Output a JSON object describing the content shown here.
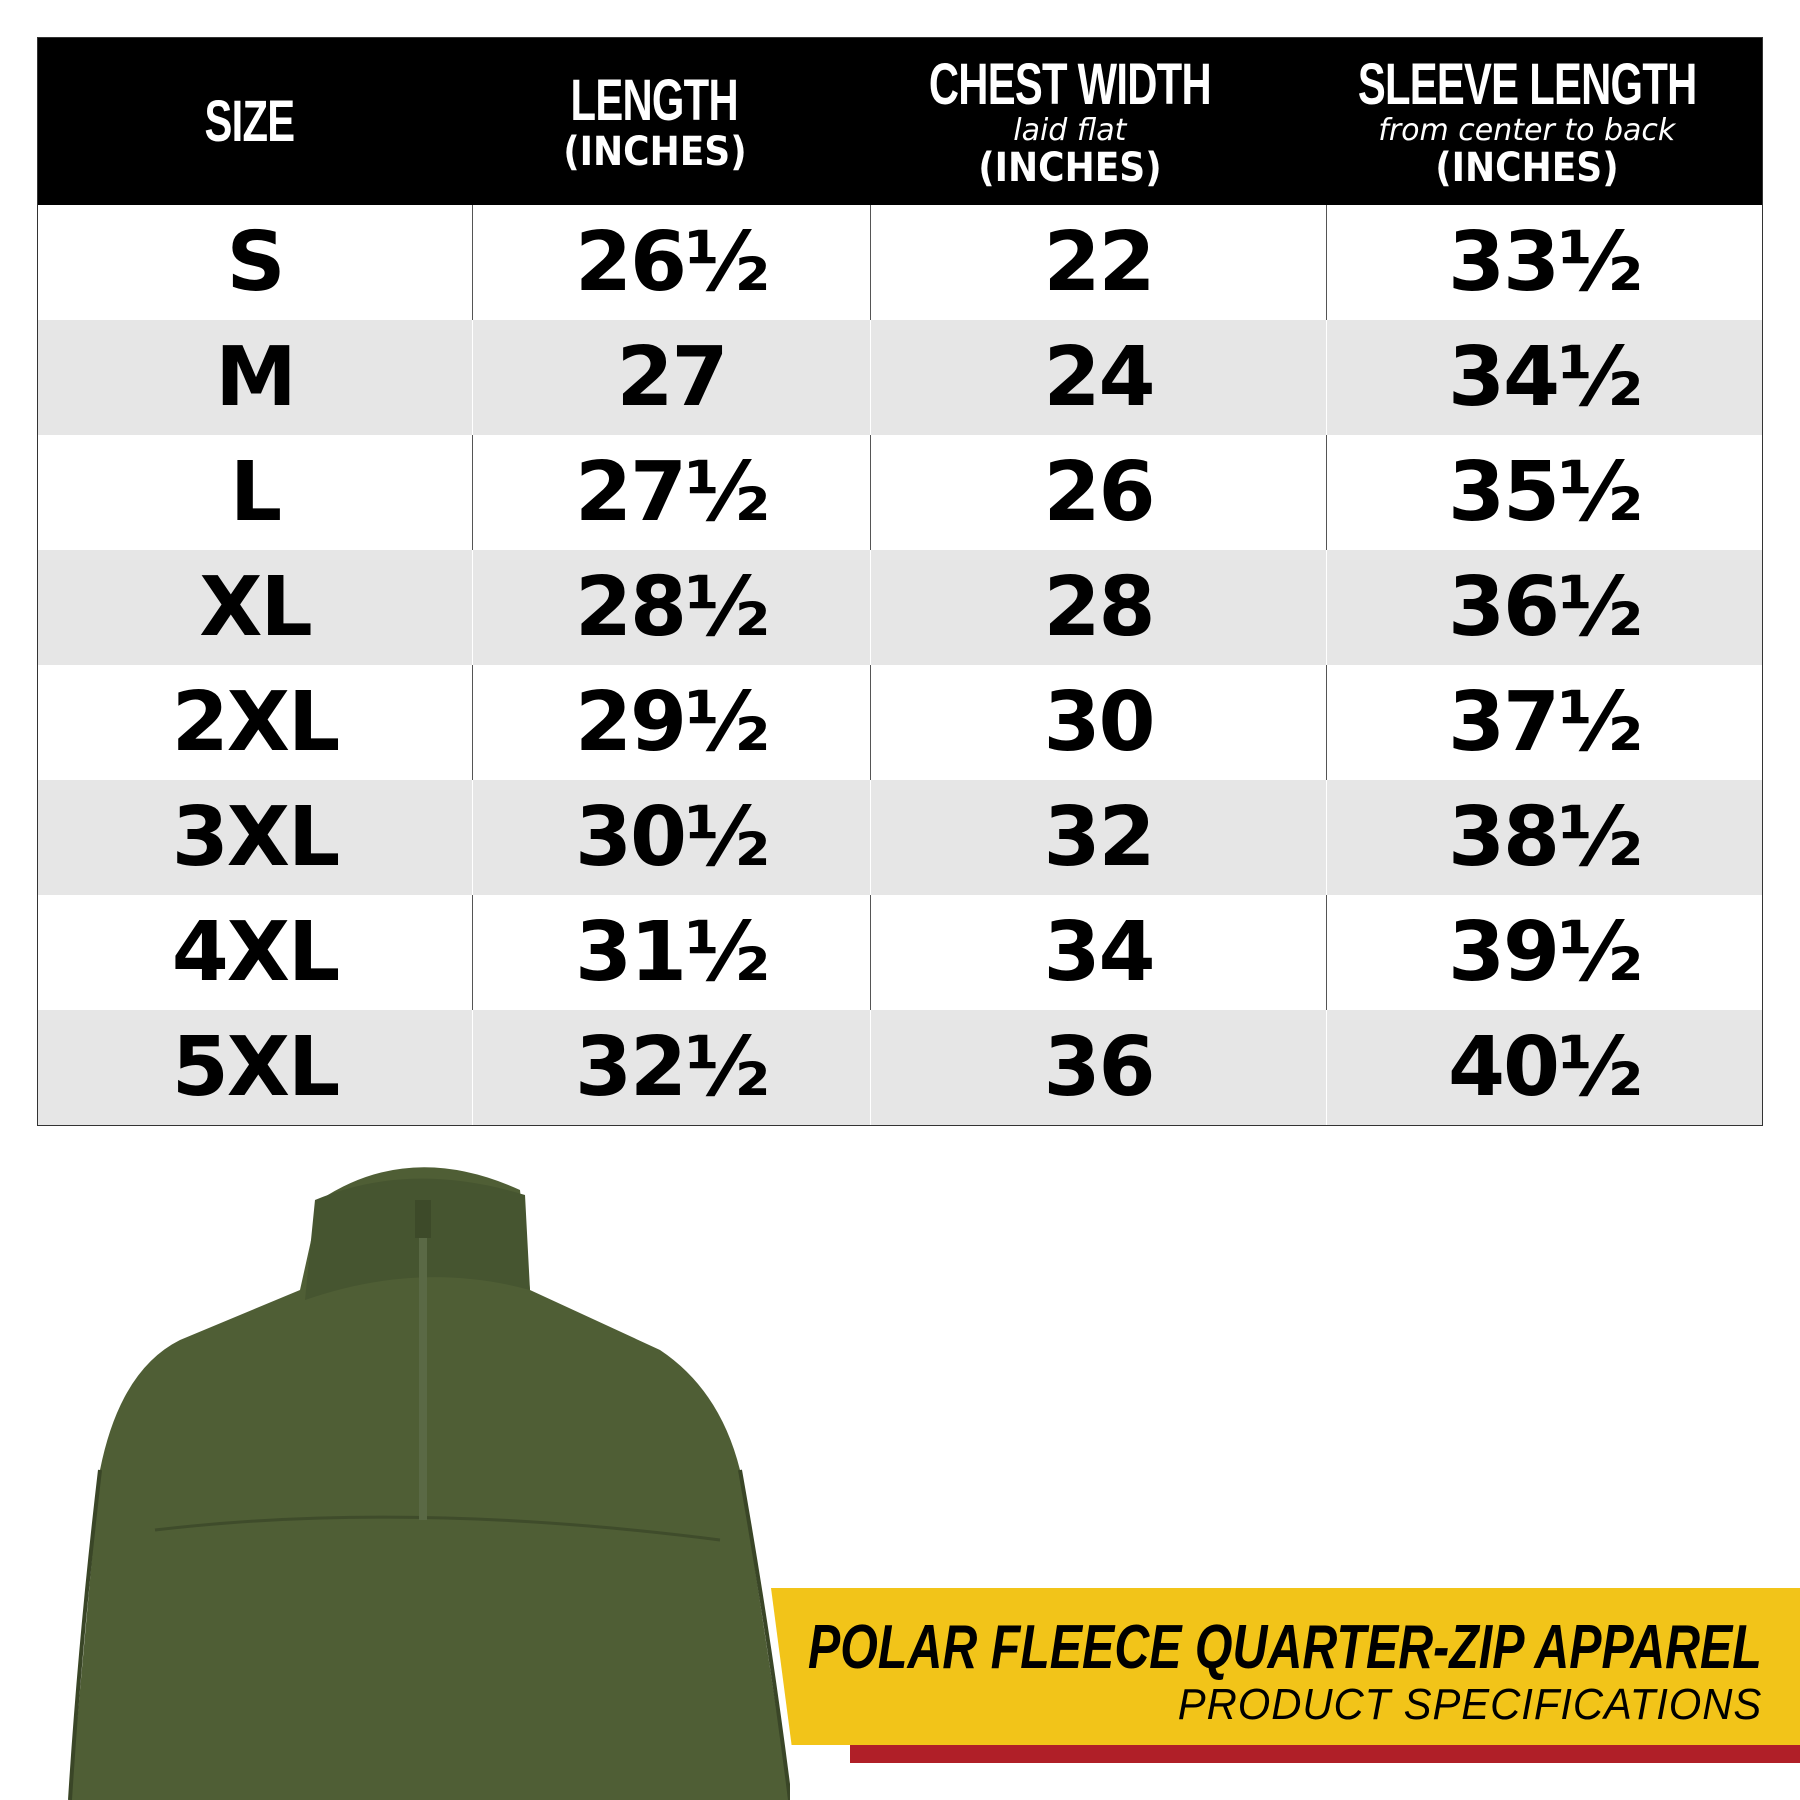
{
  "headers": [
    {
      "title": "SIZE",
      "sub": "",
      "unit": ""
    },
    {
      "title": "LENGTH",
      "sub": "",
      "unit": "(INCHES)"
    },
    {
      "title": "CHEST WIDTH",
      "sub": "laid flat",
      "unit": "(INCHES)"
    },
    {
      "title": "SLEEVE LENGTH",
      "sub": "from center to back",
      "unit": "(INCHES)"
    }
  ],
  "rows": [
    [
      "S",
      "26½",
      "22",
      "33½"
    ],
    [
      "M",
      "27",
      "24",
      "34½"
    ],
    [
      "L",
      "27½",
      "26",
      "35½"
    ],
    [
      "XL",
      "28½",
      "28",
      "36½"
    ],
    [
      "2XL",
      "29½",
      "30",
      "37½"
    ],
    [
      "3XL",
      "30½",
      "32",
      "38½"
    ],
    [
      "4XL",
      "31½",
      "34",
      "39½"
    ],
    [
      "5XL",
      "32½",
      "36",
      "40½"
    ]
  ],
  "banner": {
    "title": "POLAR FLEECE QUARTER-ZIP APPAREL",
    "subtitle": "PRODUCT SPECIFICATIONS"
  },
  "colors": {
    "banner": "#f2c419",
    "stripe": "#b01f28",
    "jacket": "#4f5e35",
    "row_alt": "#e6e6e6"
  },
  "image": {
    "subject": "olive-green-fleece-quarter-zip-jacket"
  }
}
